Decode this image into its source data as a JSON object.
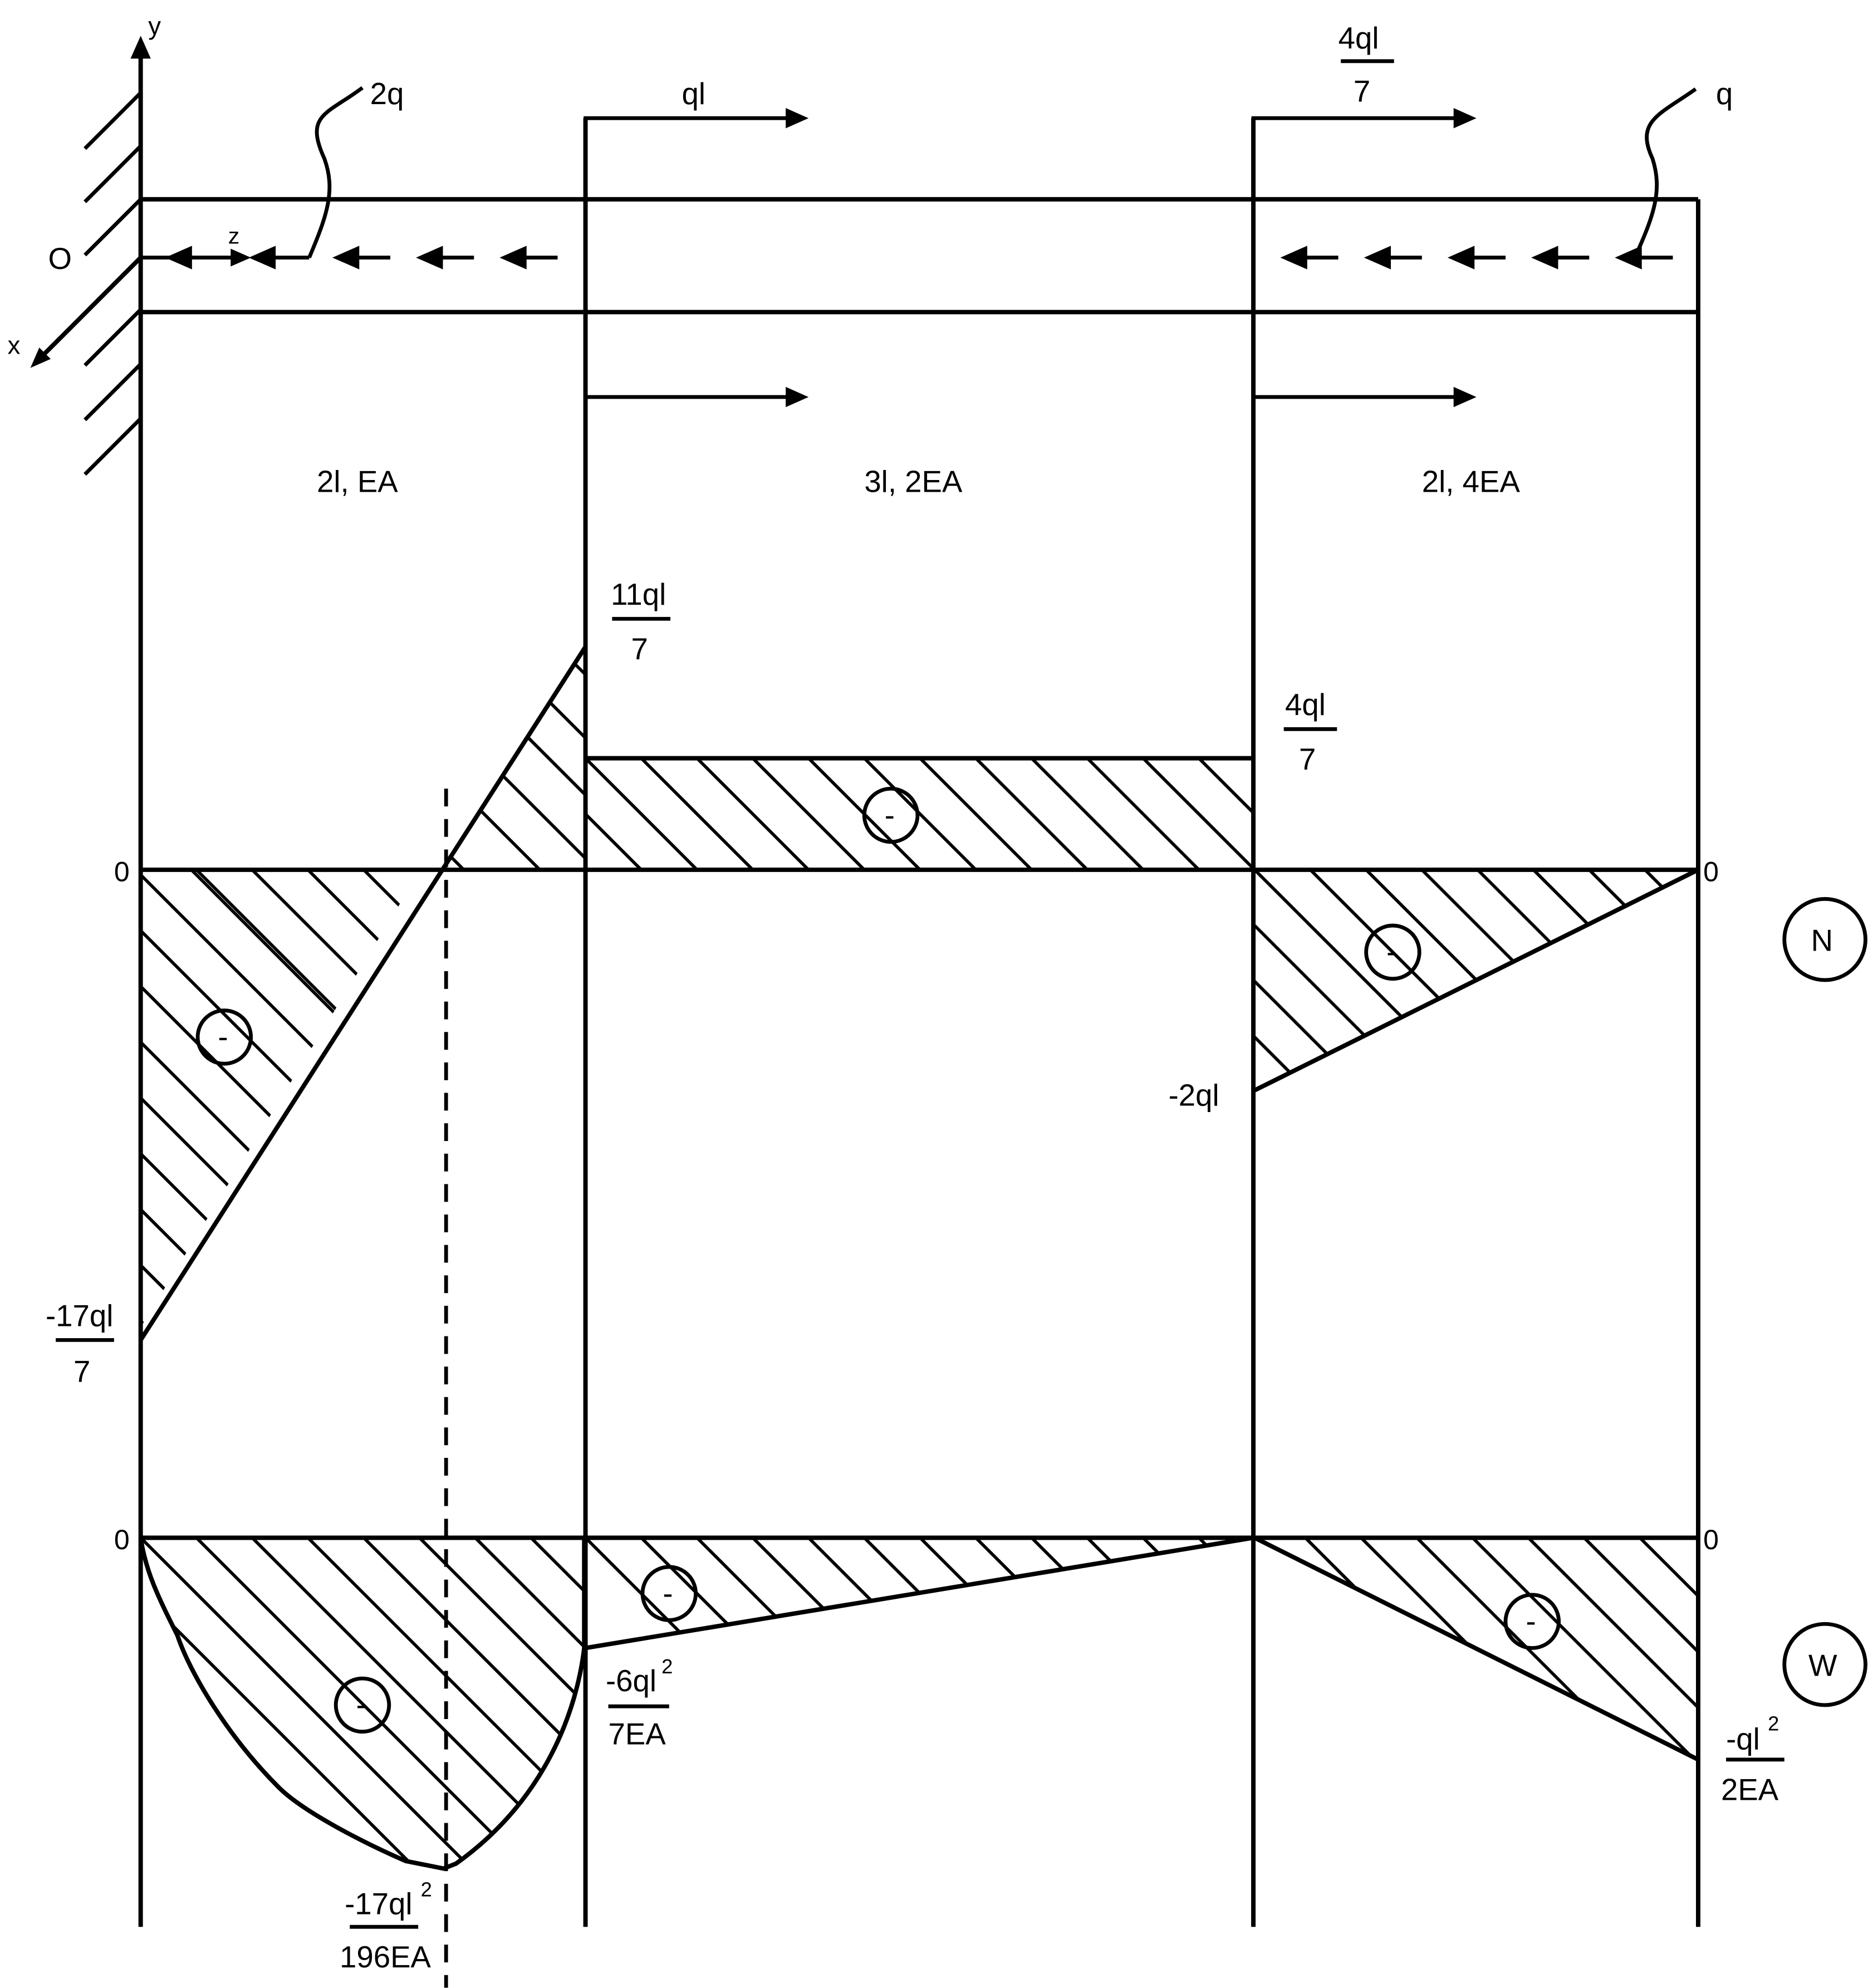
{
  "axes": {
    "y": "y",
    "z": "z",
    "x": "x",
    "origin": "O"
  },
  "loads": {
    "left_distributed": "2q",
    "right_distributed": "q",
    "point_1": "ql",
    "point_2_num": "4ql",
    "point_2_den": "7"
  },
  "segments": [
    "2l, EA",
    "3l, 2EA",
    "2l, 4EA"
  ],
  "N_diagram": {
    "badge": "N",
    "zero_left": "0",
    "zero_right": "0",
    "sign": "-",
    "val_11_num": "11ql",
    "val_11_den": "7",
    "val_4_num": "4ql",
    "val_4_den": "7",
    "val_neg2": "-2ql",
    "val_neg17_num": "-17ql",
    "val_neg17_den": "7"
  },
  "W_diagram": {
    "badge": "W",
    "zero_left": "0",
    "zero_right": "0",
    "sign": "-",
    "v1_num": "-6ql",
    "v1_den": "7EA",
    "v2_num": "-ql",
    "v2_den": "2EA",
    "v3_num": "-17ql",
    "v3_den": "196EA",
    "exponent": "2"
  }
}
